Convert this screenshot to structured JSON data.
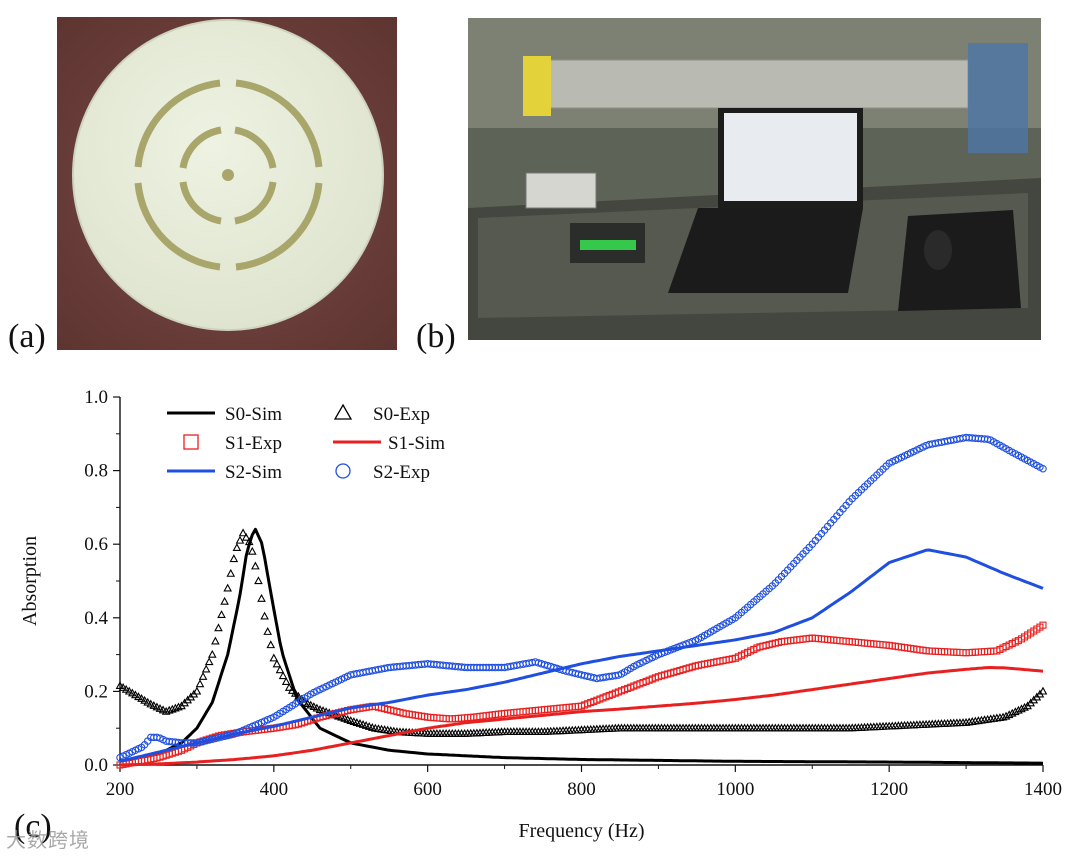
{
  "figure": {
    "panels": [
      {
        "label": "(a)",
        "content": "photo-sample-disk"
      },
      {
        "label": "(b)",
        "content": "photo-lab-setup"
      },
      {
        "label": "(c)",
        "content": "chart"
      }
    ],
    "watermark": "大数跨境"
  },
  "chart_data": {
    "type": "line",
    "title": "",
    "xlabel": "Frequency (Hz)",
    "ylabel": "Absorption",
    "xlim": [
      200,
      1400
    ],
    "ylim": [
      0,
      1.0
    ],
    "x_ticks": [
      200,
      400,
      600,
      800,
      1000,
      1200,
      1400
    ],
    "x_tick_labels": [
      "200",
      "400",
      "600",
      "800",
      "1000",
      "1200",
      "1400"
    ],
    "y_ticks": [
      0,
      0.2,
      0.4,
      0.6,
      0.8,
      1.0
    ],
    "y_tick_labels": [
      "0.0",
      "0.2",
      "0.4",
      "0.6",
      "0.8",
      "1.0"
    ],
    "grid": false,
    "legend_position": "top-left",
    "legend": [
      "S0-Sim",
      "S0-Exp",
      "S1-Exp",
      "S1-Sim",
      "S2-Sim",
      "S2-Exp"
    ],
    "series": [
      {
        "name": "S0-Sim",
        "style": "line",
        "color": "#000000",
        "x": [
          200,
          250,
          280,
          300,
          320,
          340,
          355,
          365,
          375,
          385,
          395,
          410,
          430,
          460,
          500,
          550,
          600,
          700,
          800,
          1000,
          1200,
          1400
        ],
        "y": [
          0.01,
          0.03,
          0.06,
          0.1,
          0.17,
          0.3,
          0.45,
          0.58,
          0.645,
          0.6,
          0.48,
          0.31,
          0.18,
          0.1,
          0.06,
          0.04,
          0.03,
          0.02,
          0.015,
          0.01,
          0.008,
          0.005
        ]
      },
      {
        "name": "S0-Exp",
        "style": "triangle",
        "color": "#000000",
        "x": [
          200,
          220,
          240,
          260,
          280,
          300,
          320,
          340,
          350,
          360,
          370,
          380,
          390,
          400,
          420,
          440,
          460,
          480,
          500,
          530,
          560,
          600,
          650,
          700,
          750,
          800,
          850,
          900,
          950,
          1000,
          1050,
          1100,
          1150,
          1200,
          1250,
          1300,
          1350,
          1380,
          1400
        ],
        "y": [
          0.215,
          0.19,
          0.165,
          0.145,
          0.16,
          0.2,
          0.3,
          0.48,
          0.58,
          0.63,
          0.6,
          0.5,
          0.38,
          0.29,
          0.21,
          0.17,
          0.15,
          0.135,
          0.12,
          0.1,
          0.09,
          0.085,
          0.085,
          0.09,
          0.09,
          0.095,
          0.1,
          0.1,
          0.1,
          0.1,
          0.1,
          0.1,
          0.1,
          0.105,
          0.11,
          0.115,
          0.13,
          0.16,
          0.2
        ]
      },
      {
        "name": "S1-Exp",
        "style": "square",
        "color": "#e82020",
        "x": [
          200,
          250,
          280,
          300,
          330,
          360,
          400,
          430,
          460,
          500,
          530,
          550,
          570,
          600,
          630,
          660,
          700,
          750,
          800,
          850,
          900,
          950,
          1000,
          1030,
          1060,
          1100,
          1150,
          1200,
          1250,
          1300,
          1340,
          1370,
          1400
        ],
        "y": [
          0.0,
          0.02,
          0.04,
          0.06,
          0.08,
          0.09,
          0.1,
          0.11,
          0.13,
          0.15,
          0.16,
          0.15,
          0.14,
          0.13,
          0.125,
          0.13,
          0.14,
          0.15,
          0.16,
          0.2,
          0.24,
          0.27,
          0.29,
          0.32,
          0.335,
          0.345,
          0.335,
          0.325,
          0.31,
          0.305,
          0.31,
          0.34,
          0.38
        ]
      },
      {
        "name": "S1-Sim",
        "style": "line",
        "color": "#e82020",
        "x": [
          200,
          250,
          300,
          350,
          400,
          450,
          500,
          550,
          600,
          650,
          700,
          750,
          800,
          850,
          900,
          950,
          1000,
          1050,
          1100,
          1150,
          1200,
          1250,
          1300,
          1330,
          1350,
          1400
        ],
        "y": [
          0.0,
          0.003,
          0.008,
          0.015,
          0.025,
          0.04,
          0.06,
          0.08,
          0.1,
          0.115,
          0.125,
          0.135,
          0.145,
          0.152,
          0.16,
          0.168,
          0.178,
          0.19,
          0.205,
          0.22,
          0.235,
          0.25,
          0.26,
          0.265,
          0.264,
          0.255
        ]
      },
      {
        "name": "S2-Sim",
        "style": "line",
        "color": "#1f4fe0",
        "x": [
          200,
          220,
          240,
          260,
          280,
          300,
          350,
          400,
          450,
          500,
          550,
          600,
          650,
          700,
          750,
          800,
          850,
          900,
          950,
          1000,
          1050,
          1100,
          1150,
          1200,
          1250,
          1300,
          1350,
          1400
        ],
        "y": [
          0.01,
          0.02,
          0.03,
          0.04,
          0.05,
          0.06,
          0.085,
          0.105,
          0.13,
          0.155,
          0.17,
          0.19,
          0.205,
          0.225,
          0.25,
          0.275,
          0.295,
          0.31,
          0.325,
          0.34,
          0.36,
          0.4,
          0.47,
          0.55,
          0.585,
          0.565,
          0.52,
          0.48
        ]
      },
      {
        "name": "S2-Exp",
        "style": "circle",
        "color": "#1f4fe0",
        "x": [
          200,
          230,
          240,
          250,
          260,
          280,
          300,
          350,
          400,
          450,
          500,
          550,
          600,
          650,
          700,
          740,
          780,
          820,
          850,
          870,
          900,
          950,
          1000,
          1050,
          1100,
          1150,
          1200,
          1250,
          1300,
          1330,
          1360,
          1400
        ],
        "y": [
          0.02,
          0.05,
          0.075,
          0.075,
          0.065,
          0.06,
          0.06,
          0.085,
          0.13,
          0.195,
          0.245,
          0.265,
          0.275,
          0.265,
          0.265,
          0.28,
          0.255,
          0.235,
          0.245,
          0.27,
          0.3,
          0.34,
          0.4,
          0.49,
          0.6,
          0.72,
          0.82,
          0.87,
          0.89,
          0.885,
          0.85,
          0.805
        ]
      }
    ]
  },
  "colors": {
    "black": "#000000",
    "red": "#e82020",
    "blue": "#1f4fe0"
  }
}
